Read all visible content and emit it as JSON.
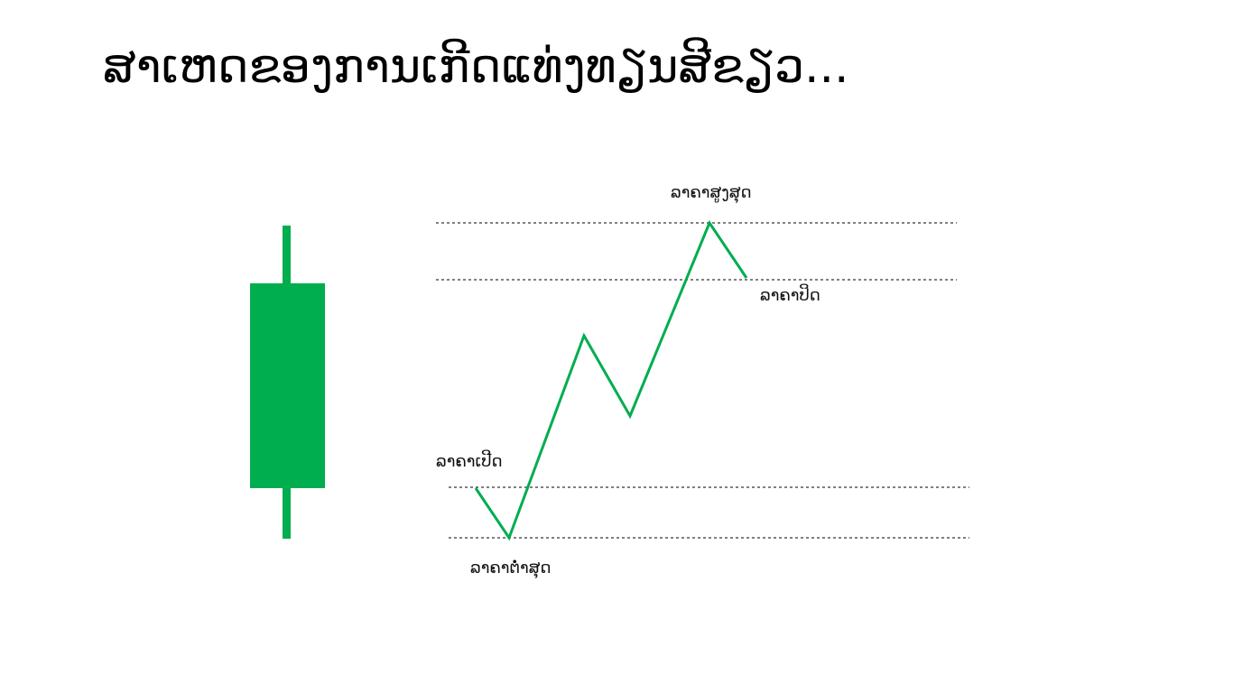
{
  "title": "ສາເຫດຂອງການເກີດແທ່ງທຽນສີຂຽວ...",
  "labels": {
    "high": "ລາຄາສູງສຸດ",
    "close": "ລາຄາປິດ",
    "open": "ລາຄາເປີດ",
    "low": "ລາຄາຕໍ່າສຸດ"
  },
  "colors": {
    "candle": "#00ad4f",
    "price_line": "#00ad4f",
    "guide_line": "#000000"
  }
}
